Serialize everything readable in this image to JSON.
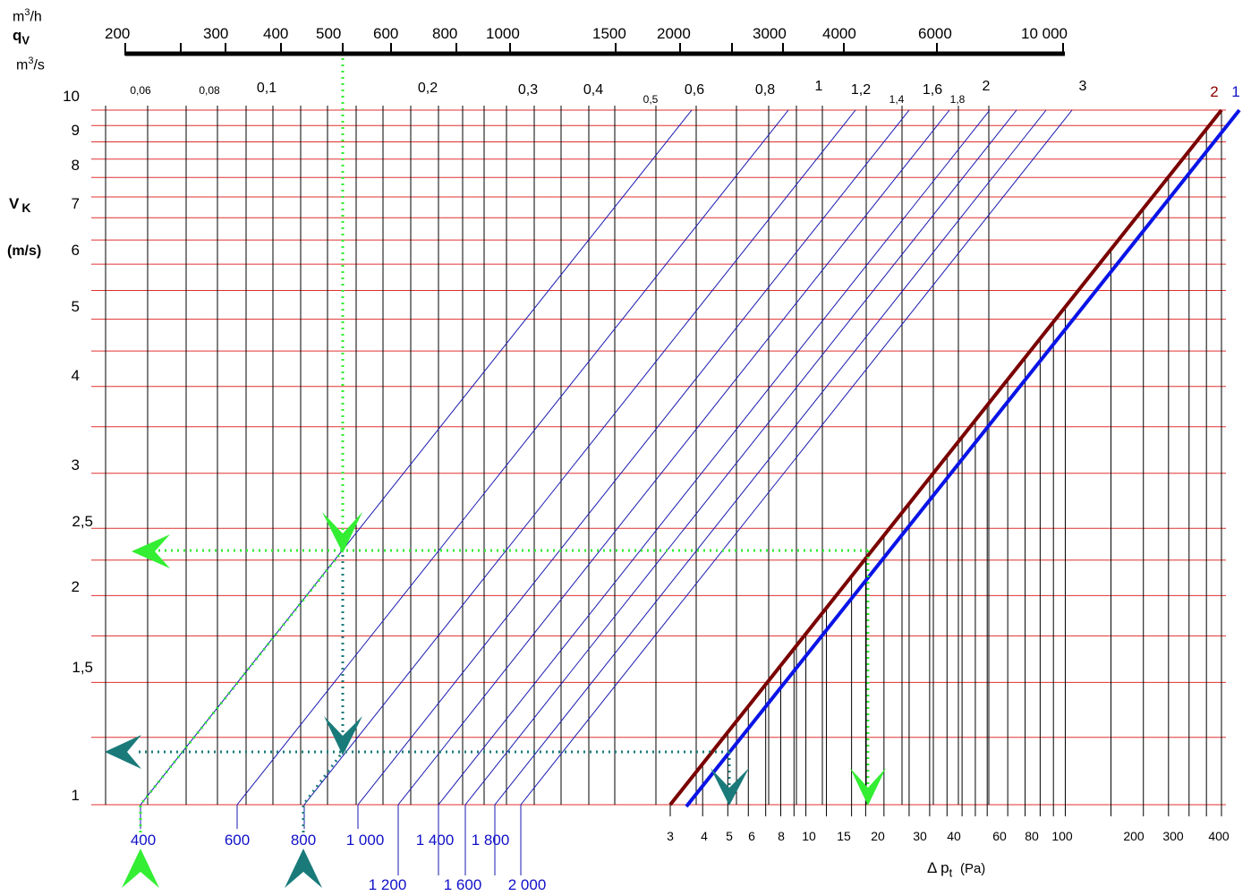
{
  "chart_data": {
    "type": "line",
    "title": "",
    "axes": {
      "qv_m3h": {
        "unit_label_text": "m3/h",
        "unit": "m",
        "unit_exp": "3",
        "unit_tail": "/h",
        "ticks": [
          "200",
          "300",
          "400",
          "500",
          "600",
          "800",
          "1000",
          "1500",
          "2000",
          "3000",
          "4000",
          "6000",
          "10 000"
        ]
      },
      "qv_symbol": "q",
      "qv_sub": "V",
      "qv_m3s": {
        "unit": "m",
        "unit_exp": "3",
        "unit_tail": "/s",
        "ticks": [
          "0,06",
          "0,08",
          "0,1",
          "0,2",
          "0,3",
          "0,4",
          "0,5",
          "0,6",
          "0,8",
          "1",
          "1,2",
          "1,4",
          "1,6",
          "1,8",
          "2",
          "3"
        ]
      },
      "vk": {
        "symbol": "V",
        "sub": "K",
        "unit": "(m/s)",
        "ticks": [
          "1",
          "1,5",
          "2",
          "2,5",
          "3",
          "4",
          "5",
          "6",
          "7",
          "8",
          "9",
          "10"
        ],
        "values": [
          1,
          1.5,
          2,
          2.5,
          3,
          4,
          5,
          6,
          7,
          8,
          9,
          10
        ]
      },
      "diameter_mm": {
        "ticks": [
          "400",
          "600",
          "800",
          "1 000",
          "1 200",
          "1 400",
          "1 600",
          "1 800",
          "2 000"
        ]
      },
      "dp": {
        "symbol": "Δ p",
        "sub": "t",
        "unit": "(Pa)",
        "ticks": [
          "3",
          "4",
          "5",
          "6",
          "8",
          "10",
          "15",
          "20",
          "30",
          "40",
          "60",
          "80",
          "100",
          "200",
          "300",
          "400"
        ],
        "values": [
          3,
          4,
          5,
          6,
          8,
          10,
          15,
          20,
          30,
          40,
          60,
          80,
          100,
          200,
          300,
          400
        ]
      }
    },
    "series": [
      {
        "name": "1",
        "color": "#0a14e6",
        "points": [
          [
            3.6,
            1
          ],
          [
            400,
            10.1
          ]
        ]
      },
      {
        "name": "2",
        "color": "#7a0000",
        "points": [
          [
            3,
            1
          ],
          [
            400,
            10
          ]
        ]
      }
    ],
    "diameter_lines_mm": [
      400,
      600,
      800,
      1000,
      1200,
      1400,
      1600,
      1800,
      2000
    ],
    "examples": [
      {
        "color": "#33ee33",
        "qv_m3h": 500,
        "diameter_mm": 400,
        "vk": 2.4,
        "dp_pa": 18
      },
      {
        "color": "#1a7a7a",
        "qv_m3h": 500,
        "diameter_mm": 800,
        "vk": 1.2,
        "dp_pa": 5
      }
    ],
    "grid": true
  },
  "colors": {
    "grid_h": "#e03030",
    "grid_v": "#000000",
    "diag": "#1a1ab0",
    "curve1": "#0a14e6",
    "curve2": "#7a0000",
    "green": "#33ee33",
    "teal": "#1a7a7a"
  }
}
